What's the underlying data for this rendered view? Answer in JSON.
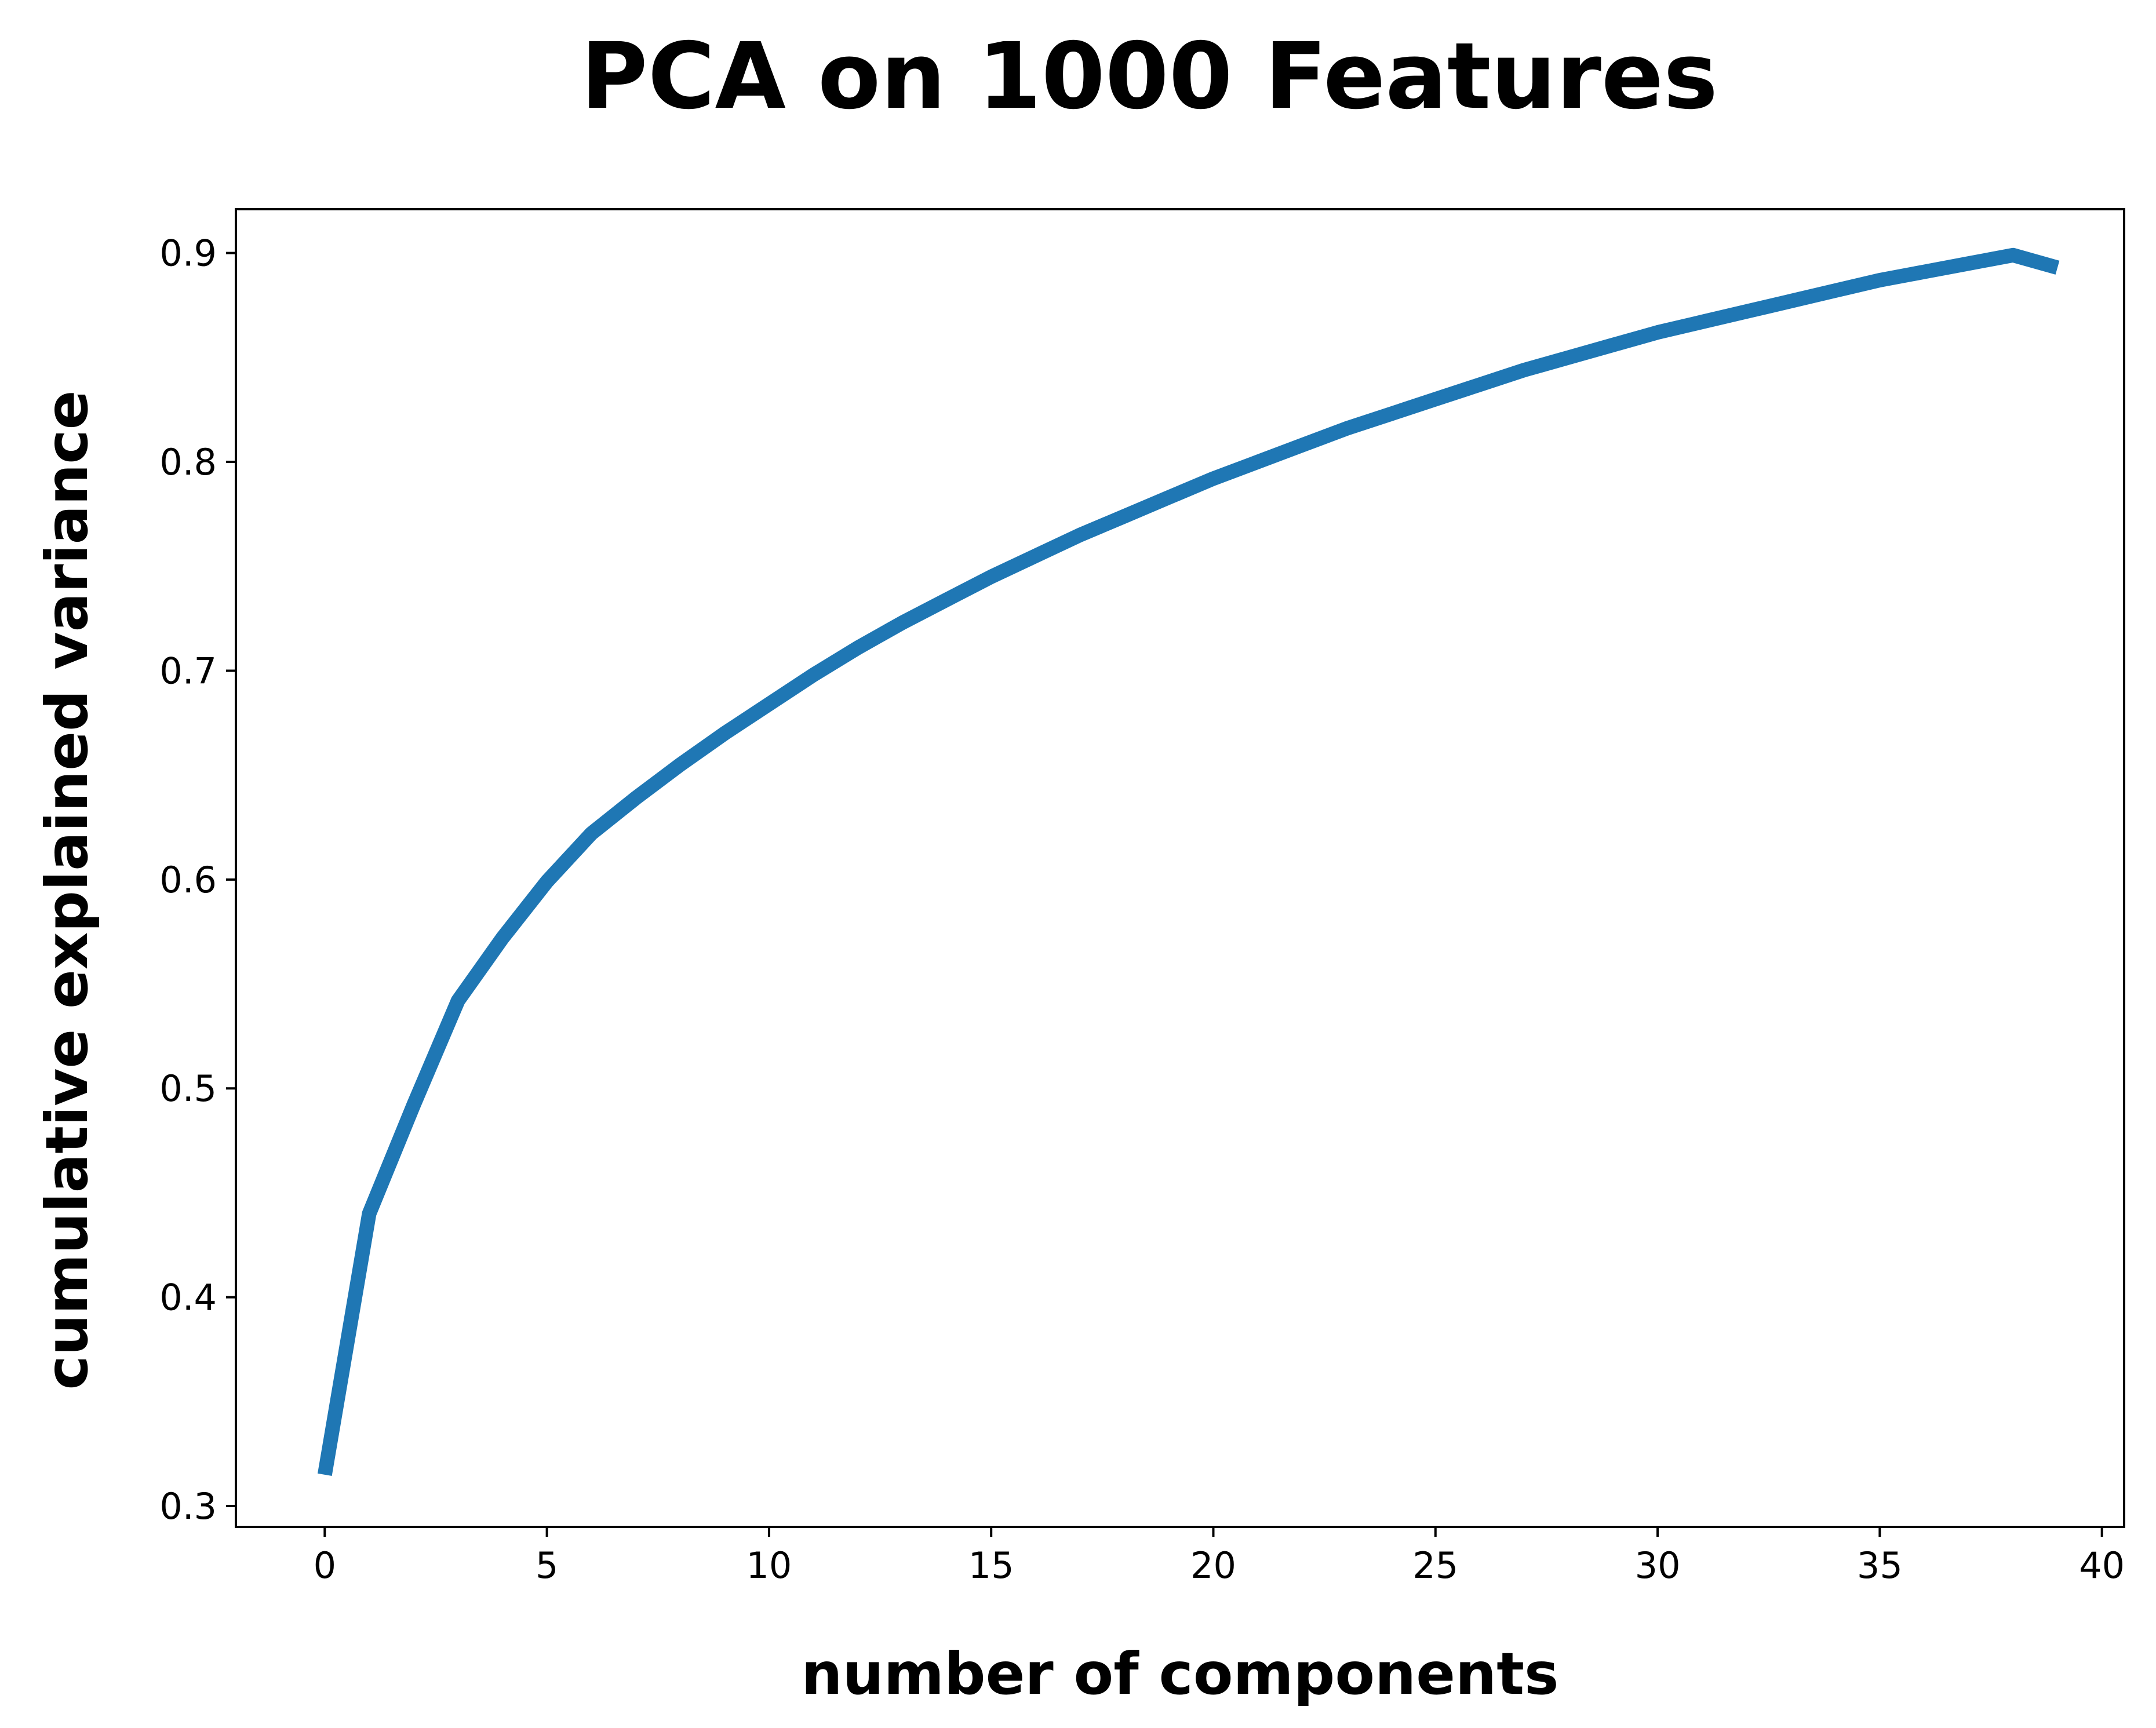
{
  "chart_data": {
    "type": "line",
    "title": "PCA on 1000 Features",
    "xlabel": "number of components",
    "ylabel": "cumulative explained variance",
    "xlim": [
      -2,
      40.5
    ],
    "ylim": [
      0.29,
      0.921
    ],
    "xticks": [
      0,
      5,
      10,
      15,
      20,
      25,
      30,
      35,
      40
    ],
    "xtick_labels": [
      "0",
      "5",
      "10",
      "15",
      "20",
      "25",
      "30",
      "35",
      "40"
    ],
    "yticks": [
      0.3,
      0.4,
      0.5,
      0.6,
      0.7,
      0.8,
      0.9
    ],
    "ytick_labels": [
      "0.3",
      "0.4",
      "0.5",
      "0.6",
      "0.7",
      "0.8",
      "0.9"
    ],
    "grid": false,
    "legend": "none",
    "line_color": "#1f77b4",
    "series": [
      {
        "x": [
          0,
          1,
          2,
          3,
          4,
          5,
          6,
          7,
          8,
          9,
          10,
          11,
          12,
          13,
          14,
          15,
          16,
          17,
          18,
          19,
          20,
          21,
          22,
          23,
          24,
          25,
          26,
          27,
          28,
          29,
          30,
          31,
          32,
          33,
          34,
          35,
          36,
          37,
          38,
          39
        ],
        "values": [
          0.315,
          0.44,
          0.492,
          0.542,
          0.572,
          0.599,
          0.622,
          0.639,
          0.655,
          0.67,
          0.684,
          0.698,
          0.711,
          0.723,
          0.734,
          0.745,
          0.755,
          0.765,
          0.774,
          0.783,
          0.792,
          0.8,
          0.808,
          0.816,
          0.823,
          0.83,
          0.837,
          0.844,
          0.85,
          0.856,
          0.862,
          0.867,
          0.872,
          0.877,
          0.882,
          0.887,
          0.891,
          0.895,
          0.899,
          0.893
        ]
      }
    ]
  }
}
